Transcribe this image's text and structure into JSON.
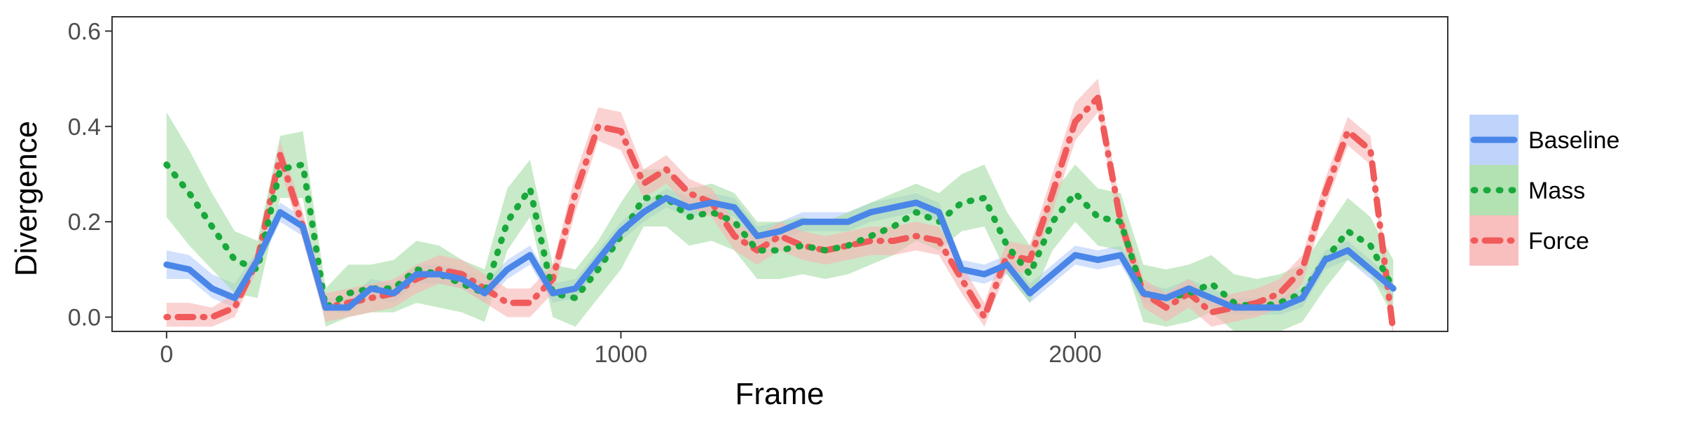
{
  "chart_data": {
    "type": "line",
    "xlabel": "Frame",
    "ylabel": "Divergence",
    "xlim": [
      -120,
      2820
    ],
    "ylim": [
      -0.03,
      0.63
    ],
    "x_ticks": [
      0,
      1000,
      2000
    ],
    "y_ticks": [
      0.0,
      0.2,
      0.4,
      0.6
    ],
    "x_tick_labels": [
      "0",
      "1000",
      "2000"
    ],
    "y_tick_labels": [
      "0.0",
      "0.2",
      "0.4",
      "0.6"
    ],
    "grid": false,
    "legend_position": "right",
    "x": [
      0,
      50,
      100,
      150,
      200,
      250,
      300,
      350,
      400,
      450,
      500,
      550,
      600,
      650,
      700,
      750,
      800,
      850,
      900,
      950,
      1000,
      1050,
      1100,
      1150,
      1200,
      1250,
      1300,
      1350,
      1400,
      1450,
      1500,
      1550,
      1600,
      1650,
      1700,
      1750,
      1800,
      1850,
      1900,
      1950,
      2000,
      2050,
      2100,
      2150,
      2200,
      2250,
      2300,
      2350,
      2400,
      2450,
      2500,
      2550,
      2600,
      2650,
      2700
    ],
    "series": [
      {
        "name": "Baseline",
        "color": "#4a86e8",
        "band_color": "#b3ccfa",
        "dash": "solid",
        "values": [
          0.11,
          0.1,
          0.06,
          0.04,
          0.12,
          0.22,
          0.19,
          0.02,
          0.02,
          0.06,
          0.05,
          0.09,
          0.09,
          0.08,
          0.05,
          0.1,
          0.13,
          0.05,
          0.06,
          0.12,
          0.18,
          0.22,
          0.25,
          0.23,
          0.24,
          0.23,
          0.17,
          0.18,
          0.2,
          0.2,
          0.2,
          0.22,
          0.23,
          0.24,
          0.22,
          0.1,
          0.09,
          0.11,
          0.05,
          0.09,
          0.13,
          0.12,
          0.13,
          0.05,
          0.04,
          0.06,
          0.04,
          0.02,
          0.02,
          0.02,
          0.04,
          0.12,
          0.14,
          0.1,
          0.06
        ],
        "lower": [
          0.08,
          0.08,
          0.04,
          0.02,
          0.1,
          0.2,
          0.17,
          0.01,
          0.01,
          0.04,
          0.03,
          0.07,
          0.07,
          0.06,
          0.03,
          0.08,
          0.11,
          0.03,
          0.04,
          0.1,
          0.16,
          0.2,
          0.23,
          0.21,
          0.22,
          0.21,
          0.15,
          0.16,
          0.18,
          0.18,
          0.18,
          0.2,
          0.21,
          0.22,
          0.2,
          0.08,
          0.07,
          0.09,
          0.03,
          0.07,
          0.11,
          0.1,
          0.11,
          0.03,
          0.02,
          0.04,
          0.02,
          0.005,
          0.005,
          0.005,
          0.02,
          0.1,
          0.12,
          0.08,
          0.04
        ],
        "upper": [
          0.14,
          0.13,
          0.09,
          0.07,
          0.14,
          0.24,
          0.21,
          0.04,
          0.04,
          0.08,
          0.07,
          0.11,
          0.11,
          0.1,
          0.07,
          0.12,
          0.15,
          0.07,
          0.08,
          0.14,
          0.2,
          0.24,
          0.27,
          0.25,
          0.26,
          0.25,
          0.19,
          0.2,
          0.22,
          0.22,
          0.22,
          0.24,
          0.25,
          0.26,
          0.24,
          0.12,
          0.11,
          0.13,
          0.07,
          0.11,
          0.15,
          0.14,
          0.15,
          0.07,
          0.06,
          0.08,
          0.06,
          0.04,
          0.04,
          0.04,
          0.06,
          0.14,
          0.16,
          0.12,
          0.08
        ]
      },
      {
        "name": "Mass",
        "color": "#19a83b",
        "band_color": "#a4dca4",
        "dash": "dotted",
        "values": [
          0.32,
          0.26,
          0.19,
          0.12,
          0.1,
          0.31,
          0.32,
          0.02,
          0.05,
          0.06,
          0.06,
          0.1,
          0.09,
          0.07,
          0.05,
          0.2,
          0.27,
          0.05,
          0.04,
          0.1,
          0.17,
          0.25,
          0.25,
          0.21,
          0.22,
          0.2,
          0.14,
          0.14,
          0.15,
          0.14,
          0.15,
          0.17,
          0.19,
          0.22,
          0.2,
          0.24,
          0.25,
          0.15,
          0.09,
          0.2,
          0.26,
          0.21,
          0.2,
          0.05,
          0.04,
          0.05,
          0.07,
          0.03,
          0.02,
          0.03,
          0.05,
          0.12,
          0.18,
          0.15,
          0.06
        ],
        "lower": [
          0.21,
          0.15,
          0.1,
          0.05,
          0.04,
          0.25,
          0.25,
          -0.02,
          0.0,
          0.01,
          0.01,
          0.03,
          0.02,
          0.01,
          -0.01,
          0.14,
          0.21,
          0.0,
          -0.02,
          0.04,
          0.1,
          0.19,
          0.19,
          0.15,
          0.16,
          0.14,
          0.08,
          0.08,
          0.09,
          0.08,
          0.09,
          0.11,
          0.13,
          0.16,
          0.14,
          0.18,
          0.19,
          0.09,
          0.03,
          0.14,
          0.2,
          0.15,
          0.14,
          -0.01,
          -0.02,
          -0.01,
          0.01,
          -0.03,
          -0.04,
          -0.03,
          -0.01,
          0.06,
          0.12,
          0.09,
          0.0
        ],
        "upper": [
          0.43,
          0.35,
          0.26,
          0.18,
          0.16,
          0.38,
          0.39,
          0.06,
          0.11,
          0.11,
          0.12,
          0.16,
          0.15,
          0.12,
          0.1,
          0.27,
          0.33,
          0.11,
          0.1,
          0.16,
          0.24,
          0.31,
          0.31,
          0.27,
          0.28,
          0.26,
          0.2,
          0.2,
          0.21,
          0.2,
          0.22,
          0.24,
          0.26,
          0.28,
          0.26,
          0.3,
          0.32,
          0.22,
          0.15,
          0.26,
          0.32,
          0.27,
          0.26,
          0.11,
          0.1,
          0.11,
          0.13,
          0.09,
          0.08,
          0.09,
          0.11,
          0.18,
          0.25,
          0.21,
          0.12
        ]
      },
      {
        "name": "Force",
        "color": "#f05a5a",
        "band_color": "#f8b4b4",
        "dash": "dotdash",
        "values": [
          0.0,
          0.0,
          0.0,
          0.02,
          0.12,
          0.34,
          0.19,
          0.02,
          0.03,
          0.04,
          0.05,
          0.08,
          0.1,
          0.09,
          0.06,
          0.03,
          0.03,
          0.08,
          0.26,
          0.4,
          0.39,
          0.28,
          0.31,
          0.26,
          0.24,
          0.17,
          0.14,
          0.17,
          0.15,
          0.14,
          0.15,
          0.16,
          0.16,
          0.17,
          0.16,
          0.08,
          0.0,
          0.13,
          0.12,
          0.26,
          0.41,
          0.46,
          0.2,
          0.05,
          0.02,
          0.05,
          0.01,
          0.02,
          0.03,
          0.05,
          0.1,
          0.26,
          0.39,
          0.35,
          -0.03
        ],
        "lower": [
          -0.02,
          -0.02,
          -0.02,
          0.0,
          0.1,
          0.31,
          0.16,
          -0.01,
          0.0,
          0.01,
          0.02,
          0.05,
          0.07,
          0.06,
          0.03,
          0.0,
          0.0,
          0.05,
          0.22,
          0.37,
          0.35,
          0.25,
          0.28,
          0.23,
          0.21,
          0.14,
          0.11,
          0.14,
          0.12,
          0.11,
          0.12,
          0.13,
          0.13,
          0.14,
          0.13,
          0.05,
          -0.02,
          0.1,
          0.09,
          0.22,
          0.37,
          0.43,
          0.17,
          0.02,
          -0.01,
          0.02,
          -0.02,
          -0.01,
          0.0,
          0.02,
          0.07,
          0.23,
          0.36,
          0.32,
          -0.05
        ],
        "upper": [
          0.03,
          0.03,
          0.02,
          0.05,
          0.14,
          0.37,
          0.22,
          0.05,
          0.06,
          0.07,
          0.08,
          0.11,
          0.13,
          0.12,
          0.09,
          0.06,
          0.06,
          0.11,
          0.3,
          0.44,
          0.43,
          0.31,
          0.34,
          0.29,
          0.27,
          0.2,
          0.17,
          0.2,
          0.18,
          0.17,
          0.18,
          0.19,
          0.19,
          0.2,
          0.19,
          0.11,
          0.03,
          0.16,
          0.15,
          0.3,
          0.45,
          0.5,
          0.23,
          0.08,
          0.05,
          0.08,
          0.04,
          0.05,
          0.06,
          0.08,
          0.13,
          0.29,
          0.42,
          0.38,
          0.0
        ]
      }
    ]
  }
}
